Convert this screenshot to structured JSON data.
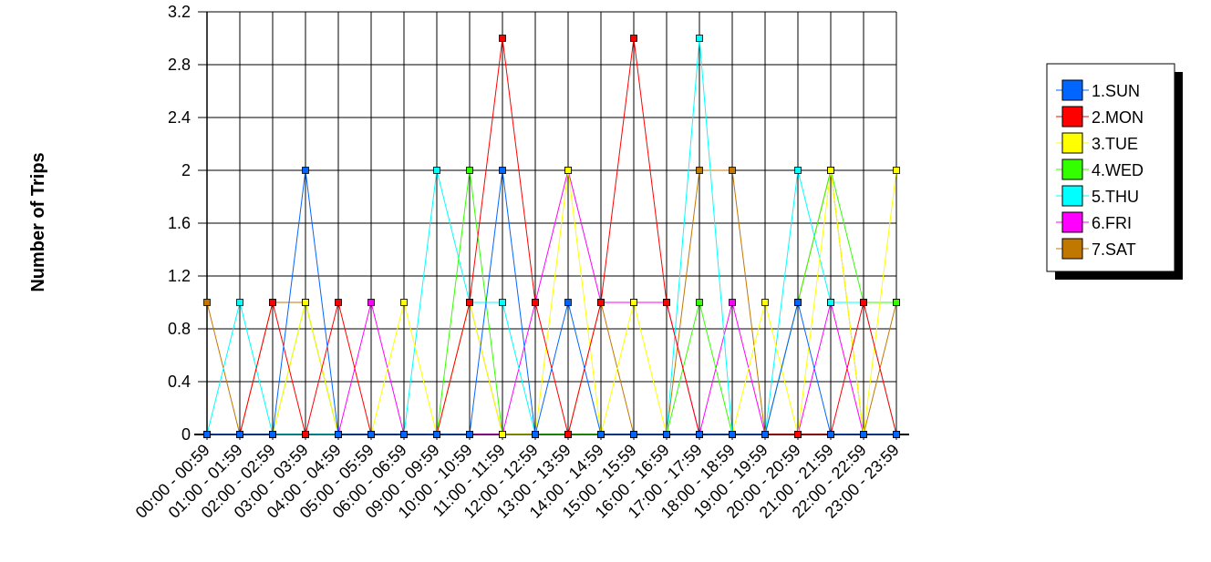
{
  "chart_data": {
    "type": "line",
    "title": "",
    "xlabel": "",
    "ylabel": "Number of Trips",
    "ylim": [
      0,
      3.2
    ],
    "y_ticks": [
      "0",
      "0.4",
      "0.8",
      "1.2",
      "1.6",
      "2",
      "2.4",
      "2.8",
      "3.2"
    ],
    "y_tick_values": [
      0,
      0.4,
      0.8,
      1.2,
      1.6,
      2,
      2.4,
      2.8,
      3.2
    ],
    "grid": true,
    "legend_position": "right",
    "categories": [
      "00:00 - 00:59",
      "01:00 - 01:59",
      "02:00 - 02:59",
      "03:00 - 03:59",
      "04:00 - 04:59",
      "05:00 - 05:59",
      "06:00 - 06:59",
      "09:00 - 09:59",
      "10:00 - 10:59",
      "11:00 - 11:59",
      "12:00 - 12:59",
      "13:00 - 13:59",
      "14:00 - 14:59",
      "15:00 - 15:59",
      "16:00 - 16:59",
      "17:00 - 17:59",
      "18:00 - 18:59",
      "19:00 - 19:59",
      "20:00 - 20:59",
      "21:00 - 21:59",
      "22:00 - 22:59",
      "23:00 - 23:59"
    ],
    "series": [
      {
        "name": "1.SUN",
        "color": "#0066ff",
        "values": [
          0,
          0,
          0,
          2,
          0,
          0,
          0,
          0,
          0,
          2,
          0,
          1,
          0,
          0,
          0,
          0,
          0,
          0,
          1,
          0,
          0,
          0
        ]
      },
      {
        "name": "2.MON",
        "color": "#ff0000",
        "values": [
          0,
          0,
          1,
          0,
          1,
          0,
          0,
          0,
          1,
          3,
          1,
          0,
          1,
          3,
          1,
          0,
          0,
          0,
          0,
          0,
          1,
          0
        ]
      },
      {
        "name": "3.TUE",
        "color": "#ffff00",
        "values": [
          0,
          0,
          0,
          1,
          0,
          0,
          1,
          0,
          1,
          0,
          0,
          2,
          0,
          1,
          0,
          0,
          0,
          1,
          0,
          2,
          0,
          2
        ]
      },
      {
        "name": "4.WED",
        "color": "#33ff00",
        "values": [
          0,
          0,
          0,
          1,
          0,
          0,
          0,
          0,
          2,
          0,
          0,
          0,
          0,
          0,
          0,
          1,
          0,
          0,
          1,
          2,
          1,
          1
        ]
      },
      {
        "name": "5.THU",
        "color": "#00ffff",
        "values": [
          0,
          1,
          0,
          0,
          0,
          0,
          0,
          2,
          1,
          1,
          0,
          0,
          0,
          0,
          0,
          3,
          0,
          0,
          2,
          1,
          1,
          0
        ]
      },
      {
        "name": "6.FRI",
        "color": "#ff00ff",
        "values": [
          0,
          0,
          0,
          0,
          0,
          1,
          0,
          0,
          0,
          0,
          1,
          2,
          1,
          1,
          1,
          0,
          1,
          0,
          0,
          1,
          0,
          0
        ]
      },
      {
        "name": "7.SAT",
        "color": "#c07800",
        "values": [
          1,
          0,
          1,
          1,
          0,
          0,
          0,
          0,
          1,
          0,
          0,
          0,
          1,
          0,
          0,
          2,
          2,
          0,
          1,
          2,
          0,
          1
        ]
      }
    ]
  }
}
